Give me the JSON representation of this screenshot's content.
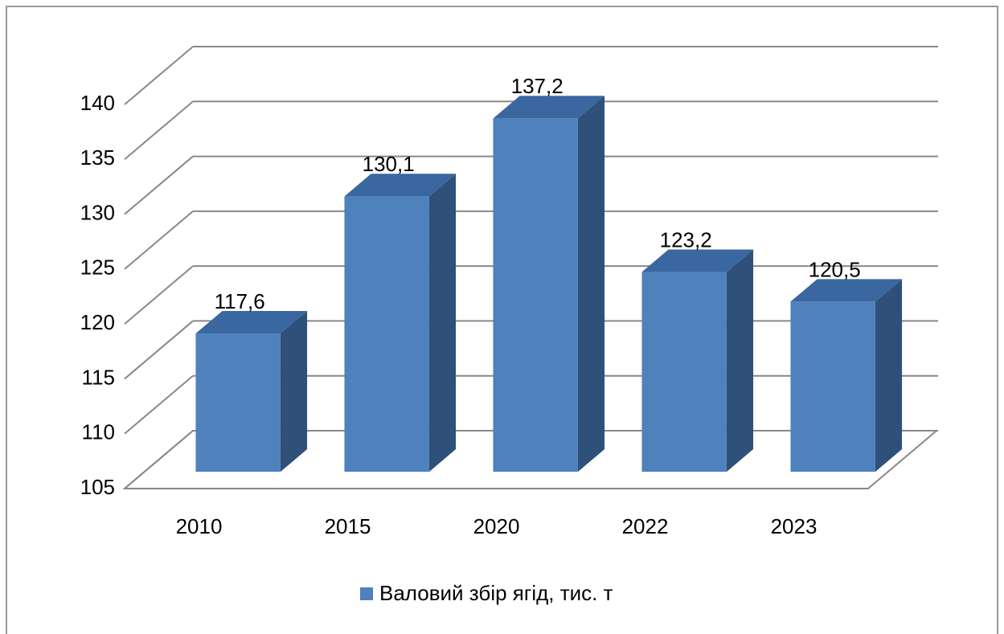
{
  "chart_data": {
    "type": "bar3d",
    "categories": [
      "2010",
      "2015",
      "2020",
      "2022",
      "2023"
    ],
    "series": [
      {
        "name": "Валовий збір ягід, тис. т",
        "color": "#4f81bd",
        "values": [
          117.6,
          130.1,
          137.2,
          123.2,
          120.5
        ],
        "value_labels": [
          "117,6",
          "130,1",
          "137,2",
          "123,2",
          "120,5"
        ]
      }
    ],
    "ylim": [
      105,
      140
    ],
    "yticks": [
      105,
      110,
      115,
      120,
      125,
      130,
      135,
      140
    ],
    "grid": true,
    "legend": "bottom"
  }
}
